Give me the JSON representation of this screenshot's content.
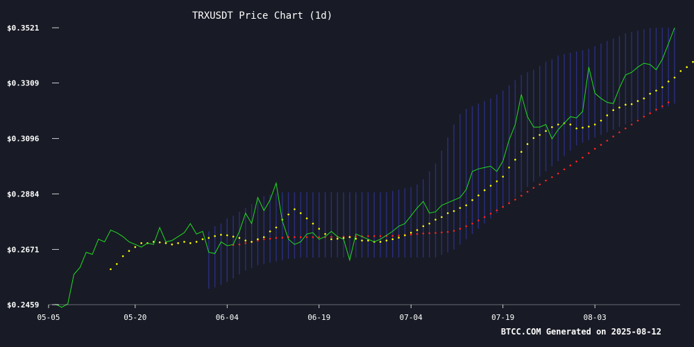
{
  "chart_data": {
    "type": "line",
    "title": "TRXUSDT Price Chart (1d)",
    "footer": "BTCC.COM Generated on 2025-08-12",
    "xlabel": "",
    "ylabel": "",
    "ylim": [
      0.2459,
      0.3521
    ],
    "y_ticks": [
      "$0.3521",
      "$0.3309",
      "$0.3096",
      "$0.2884",
      "$0.2671",
      "$0.2459"
    ],
    "x_ticks": [
      "05-05",
      "05-20",
      "06-04",
      "06-19",
      "07-04",
      "07-19",
      "08-03"
    ],
    "grid": false,
    "colors": {
      "background": "#181b25",
      "price": "#22dd22",
      "fast_ma": "#ffff00",
      "slow_ma": "#ff2222",
      "band": "#2a2e80",
      "axis": "#ffffff"
    },
    "series": [
      {
        "key": "price",
        "values": [
          0.2461,
          0.2449,
          0.2462,
          0.2575,
          0.2602,
          0.266,
          0.2652,
          0.271,
          0.27,
          0.2745,
          0.2735,
          0.272,
          0.27,
          0.269,
          0.268,
          0.2695,
          0.269,
          0.2755,
          0.27,
          0.2705,
          0.272,
          0.2735,
          0.277,
          0.273,
          0.274,
          0.266,
          0.2655,
          0.27,
          0.2685,
          0.269,
          0.274,
          0.281,
          0.277,
          0.287,
          0.282,
          0.286,
          0.2925,
          0.278,
          0.271,
          0.269,
          0.27,
          0.273,
          0.2735,
          0.271,
          0.272,
          0.274,
          0.272,
          0.271,
          0.263,
          0.273,
          0.272,
          0.271,
          0.27,
          0.271,
          0.2725,
          0.274,
          0.276,
          0.277,
          0.28,
          0.283,
          0.2855,
          0.281,
          0.2815,
          0.284,
          0.285,
          0.286,
          0.287,
          0.29,
          0.297,
          0.298,
          0.2985,
          0.299,
          0.297,
          0.301,
          0.309,
          0.315,
          0.3265,
          0.318,
          0.314,
          0.314,
          0.315,
          0.3095,
          0.313,
          0.3155,
          0.318,
          0.3175,
          0.32,
          0.337,
          0.327,
          0.325,
          0.3235,
          0.323,
          0.329,
          0.334,
          0.335,
          0.337,
          0.3385,
          0.338,
          0.336,
          0.34,
          0.346,
          0.3521
        ]
      },
      {
        "key": "fast_ma",
        "start_index": 9,
        "values": [
          0.2595,
          0.2615,
          0.2645,
          0.2665,
          0.268,
          0.2695,
          0.2695,
          0.27,
          0.2698,
          0.2695,
          0.269,
          0.2695,
          0.27,
          0.2695,
          0.27,
          0.271,
          0.2715,
          0.2722,
          0.2727,
          0.2725,
          0.272,
          0.2715,
          0.2705,
          0.27,
          0.271,
          0.2718,
          0.274,
          0.2755,
          0.2785,
          0.2805,
          0.2825,
          0.281,
          0.279,
          0.277,
          0.275,
          0.273,
          0.271,
          0.2712,
          0.2715,
          0.2718,
          0.2712,
          0.2705,
          0.2705,
          0.27,
          0.27,
          0.2705,
          0.271,
          0.2716,
          0.2725,
          0.2735,
          0.2745,
          0.276,
          0.277,
          0.2785,
          0.2795,
          0.281,
          0.2818,
          0.283,
          0.284,
          0.286,
          0.2878,
          0.2898,
          0.2915,
          0.2932,
          0.295,
          0.2985,
          0.3015,
          0.3045,
          0.3075,
          0.3098,
          0.311,
          0.3125,
          0.314,
          0.315,
          0.3155,
          0.315,
          0.3135,
          0.3138,
          0.3142,
          0.315,
          0.3165,
          0.3185,
          0.3205,
          0.3215,
          0.3226,
          0.3228,
          0.324,
          0.325,
          0.3268,
          0.328,
          0.3293,
          0.3315,
          0.333,
          0.3355,
          0.337,
          0.339
        ]
      },
      {
        "key": "slow_ma",
        "start_index": 29,
        "values": [
          0.2688,
          0.269,
          0.2695,
          0.27,
          0.2705,
          0.271,
          0.2712,
          0.2715,
          0.2716,
          0.2718,
          0.2718,
          0.2718,
          0.2718,
          0.2718,
          0.2718,
          0.2718,
          0.2719,
          0.2719,
          0.272,
          0.272,
          0.2721,
          0.2721,
          0.2722,
          0.2722,
          0.2722,
          0.2723,
          0.2723,
          0.2724,
          0.2726,
          0.2728,
          0.273,
          0.2732,
          0.2733,
          0.2734,
          0.2736,
          0.2738,
          0.2742,
          0.275,
          0.276,
          0.277,
          0.2782,
          0.2795,
          0.2808,
          0.2821,
          0.2834,
          0.2848,
          0.2862,
          0.2877,
          0.2892,
          0.2907,
          0.292,
          0.2935,
          0.2948,
          0.2962,
          0.2978,
          0.2993,
          0.3008,
          0.3023,
          0.304,
          0.3057,
          0.3072,
          0.3088,
          0.3104,
          0.312,
          0.3135,
          0.315,
          0.3165,
          0.318,
          0.3193,
          0.3207,
          0.322,
          0.3235
        ]
      },
      {
        "key": "band",
        "start_index": 25,
        "upper": [
          0.274,
          0.276,
          0.277,
          0.279,
          0.28,
          0.2815,
          0.283,
          0.2845,
          0.286,
          0.2875,
          0.288,
          0.2885,
          0.289,
          0.289,
          0.289,
          0.289,
          0.289,
          0.289,
          0.289,
          0.289,
          0.289,
          0.289,
          0.289,
          0.289,
          0.289,
          0.289,
          0.289,
          0.289,
          0.289,
          0.289,
          0.2895,
          0.29,
          0.2905,
          0.291,
          0.292,
          0.294,
          0.297,
          0.3,
          0.305,
          0.31,
          0.315,
          0.319,
          0.321,
          0.322,
          0.323,
          0.324,
          0.325,
          0.3265,
          0.328,
          0.33,
          0.332,
          0.334,
          0.335,
          0.336,
          0.3375,
          0.339,
          0.34,
          0.3415,
          0.342,
          0.3425,
          0.343,
          0.3435,
          0.344,
          0.345,
          0.346,
          0.347,
          0.348,
          0.349,
          0.35,
          0.3505,
          0.351,
          0.3515,
          0.352,
          0.3521,
          0.3521,
          0.3521,
          0.3521
        ],
        "lower": [
          0.252,
          0.2525,
          0.2535,
          0.2545,
          0.256,
          0.2575,
          0.259,
          0.26,
          0.261,
          0.2615,
          0.262,
          0.2625,
          0.263,
          0.2635,
          0.2635,
          0.264,
          0.264,
          0.264,
          0.264,
          0.264,
          0.264,
          0.264,
          0.264,
          0.264,
          0.264,
          0.264,
          0.264,
          0.264,
          0.264,
          0.264,
          0.264,
          0.264,
          0.264,
          0.264,
          0.264,
          0.264,
          0.264,
          0.264,
          0.265,
          0.266,
          0.267,
          0.269,
          0.271,
          0.273,
          0.275,
          0.277,
          0.279,
          0.281,
          0.283,
          0.285,
          0.287,
          0.289,
          0.291,
          0.293,
          0.295,
          0.297,
          0.299,
          0.301,
          0.303,
          0.305,
          0.307,
          0.308,
          0.309,
          0.31,
          0.311,
          0.312,
          0.313,
          0.314,
          0.315,
          0.316,
          0.317,
          0.318,
          0.319,
          0.32,
          0.321,
          0.322,
          0.323
        ]
      }
    ]
  }
}
